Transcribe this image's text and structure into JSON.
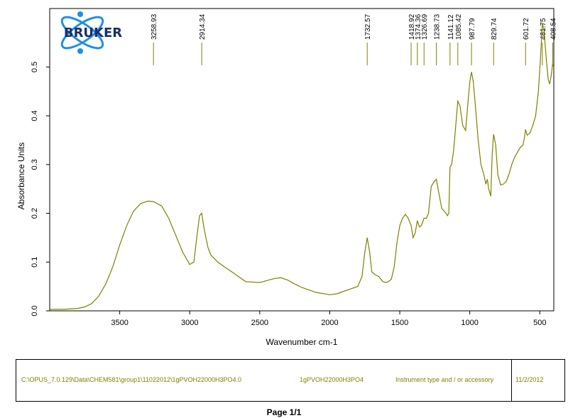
{
  "logo": {
    "text": "BRUKER"
  },
  "chart_data": {
    "type": "line",
    "title": "",
    "xlabel": "Wavenumber cm-1",
    "ylabel": "Absorbance Units",
    "xlim": [
      4000,
      400
    ],
    "ylim": [
      0,
      0.62
    ],
    "xticks": [
      3500,
      3000,
      2500,
      2000,
      1500,
      1000,
      500
    ],
    "yticks": [
      0.0,
      0.1,
      0.2,
      0.3,
      0.4,
      0.5
    ],
    "ytick_labels": [
      "0.0",
      "0.1",
      "0.2",
      "0.3",
      "0.4",
      "0.5"
    ],
    "peak_labels": [
      "3258.93",
      "2914.34",
      "1732.57",
      "1418.92",
      "1374.36",
      "1326.69",
      "1238.73",
      "1141.12",
      "1085.42",
      "987.79",
      "829.74",
      "601.72",
      "481.75",
      "408.54"
    ],
    "peaks": [
      3258.93,
      2914.34,
      1732.57,
      1418.92,
      1374.36,
      1326.69,
      1238.73,
      1141.12,
      1085.42,
      987.79,
      829.74,
      601.72,
      481.75,
      408.54
    ],
    "line_color": "#808000",
    "series": [
      {
        "x": [
          4000,
          3900,
          3800,
          3750,
          3700,
          3650,
          3600,
          3550,
          3500,
          3450,
          3400,
          3350,
          3300,
          3258.93,
          3200,
          3150,
          3100,
          3050,
          3000,
          2970,
          2950,
          2930,
          2914.34,
          2895,
          2870,
          2850,
          2800,
          2750,
          2700,
          2600,
          2500,
          2450,
          2400,
          2350,
          2300,
          2250,
          2200,
          2100,
          2000,
          1950,
          1900,
          1850,
          1800,
          1770,
          1750,
          1732.57,
          1715,
          1700,
          1680,
          1650,
          1620,
          1600,
          1580,
          1560,
          1540,
          1520,
          1500,
          1480,
          1460,
          1440,
          1418.92,
          1405,
          1390,
          1374.36,
          1360,
          1345,
          1326.69,
          1310,
          1295,
          1275,
          1255,
          1238.73,
          1220,
          1200,
          1185,
          1170,
          1160,
          1150,
          1141.12,
          1130,
          1115,
          1100,
          1085.42,
          1070,
          1050,
          1030,
          1015,
          1000,
          987.79,
          975,
          960,
          940,
          920,
          900,
          885,
          875,
          865,
          850,
          840,
          829.74,
          815,
          800,
          780,
          760,
          740,
          720,
          700,
          680,
          660,
          640,
          620,
          610,
          601.72,
          590,
          570,
          550,
          530,
          510,
          495,
          481.75,
          470,
          455,
          440,
          430,
          420,
          408.54,
          400
        ],
        "y": [
          0.003,
          0.003,
          0.005,
          0.008,
          0.015,
          0.03,
          0.055,
          0.09,
          0.135,
          0.175,
          0.205,
          0.22,
          0.225,
          0.224,
          0.215,
          0.19,
          0.155,
          0.12,
          0.095,
          0.1,
          0.15,
          0.195,
          0.2,
          0.165,
          0.13,
          0.115,
          0.1,
          0.09,
          0.08,
          0.06,
          0.058,
          0.062,
          0.066,
          0.068,
          0.063,
          0.055,
          0.048,
          0.038,
          0.033,
          0.035,
          0.04,
          0.045,
          0.05,
          0.07,
          0.12,
          0.15,
          0.12,
          0.08,
          0.075,
          0.07,
          0.06,
          0.058,
          0.06,
          0.065,
          0.09,
          0.14,
          0.175,
          0.19,
          0.198,
          0.19,
          0.175,
          0.15,
          0.16,
          0.185,
          0.172,
          0.175,
          0.19,
          0.19,
          0.2,
          0.255,
          0.265,
          0.27,
          0.24,
          0.21,
          0.205,
          0.2,
          0.195,
          0.2,
          0.295,
          0.3,
          0.33,
          0.38,
          0.43,
          0.42,
          0.38,
          0.37,
          0.42,
          0.47,
          0.49,
          0.47,
          0.42,
          0.35,
          0.3,
          0.28,
          0.26,
          0.27,
          0.25,
          0.235,
          0.32,
          0.362,
          0.34,
          0.28,
          0.258,
          0.26,
          0.265,
          0.28,
          0.3,
          0.315,
          0.325,
          0.335,
          0.34,
          0.355,
          0.372,
          0.36,
          0.365,
          0.38,
          0.4,
          0.45,
          0.52,
          0.59,
          0.575,
          0.52,
          0.475,
          0.465,
          0.48,
          0.505,
          0.5
        ]
      }
    ]
  },
  "info": {
    "path": "C:\\OPUS_7.0.129\\Data\\CHEM581\\group1\\11022012\\1gPVOH22000H3PO4.0",
    "sample": "1gPVOH22000H3PO4",
    "instrument": "Instrument type and / or accessory",
    "date": "11/2/2012"
  },
  "footer": {
    "page": "Page 1/1"
  }
}
